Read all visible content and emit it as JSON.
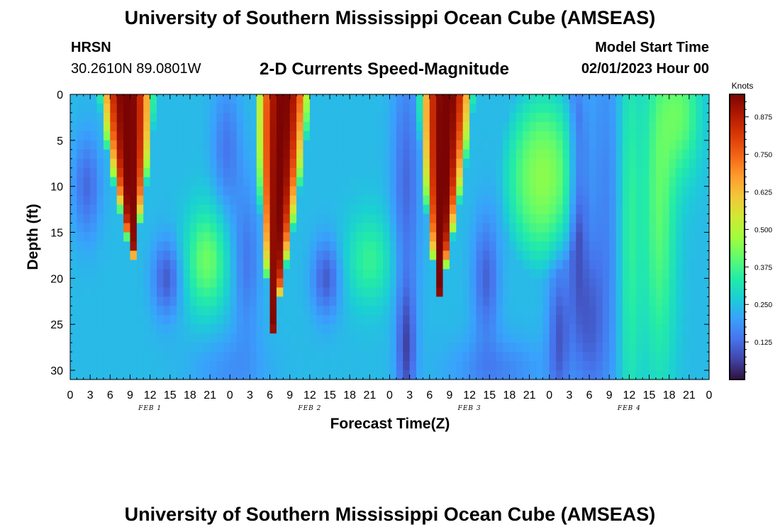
{
  "header": {
    "title": "University of Southern Mississippi Ocean Cube (AMSEAS)",
    "station": "HRSN",
    "coords": "30.2610N  89.0801W",
    "subtitle": "2-D Currents Speed-Magnitude",
    "model_start_label": "Model Start Time",
    "model_start_value": "02/01/2023 Hour 00"
  },
  "footer": {
    "title": "University of Southern Mississippi Ocean Cube (AMSEAS)"
  },
  "chart_data": {
    "type": "heatmap",
    "title": "2-D Currents Speed-Magnitude",
    "xlabel": "Forecast Time(Z)",
    "ylabel": "Depth (ft)",
    "colorbar_label": "Knots",
    "x_range_hours": [
      0,
      96
    ],
    "y_range_ft": [
      0,
      31
    ],
    "y_ticks": [
      "0",
      "5",
      "10",
      "15",
      "20",
      "25",
      "30"
    ],
    "x_ticks": [
      "0",
      "3",
      "6",
      "9",
      "12",
      "15",
      "18",
      "21",
      "0",
      "3",
      "6",
      "9",
      "12",
      "15",
      "18",
      "21",
      "0",
      "3",
      "6",
      "9",
      "12",
      "15",
      "18",
      "21",
      "0",
      "3",
      "6",
      "9",
      "12",
      "15",
      "18",
      "21",
      "0"
    ],
    "date_labels": [
      "FEB 1",
      "FEB 2",
      "FEB 3",
      "FEB 4"
    ],
    "colorbar_range": [
      0.0,
      0.95
    ],
    "colorbar_ticks": [
      "0.125",
      "0.250",
      "0.375",
      "0.500",
      "0.625",
      "0.750",
      "0.875"
    ],
    "colorbar_values": [
      0.125,
      0.25,
      0.375,
      0.5,
      0.625,
      0.75,
      0.875
    ],
    "colormap": [
      "#30123b",
      "#4145ab",
      "#4675ed",
      "#39a2fc",
      "#1bcfd4",
      "#24eca6",
      "#61fc6c",
      "#a4fc3b",
      "#d1e834",
      "#f3c63a",
      "#fe9b2d",
      "#f36315",
      "#d93806",
      "#b11901",
      "#7a0403"
    ],
    "pattern_description_hours_speed": [
      {
        "hour_range": [
          1,
          14
        ],
        "depth_ft": [
          0,
          17
        ],
        "peak_knots": 0.9
      },
      {
        "hour_range": [
          25,
          38
        ],
        "depth_ft": [
          0,
          25
        ],
        "peak_knots": 0.9
      },
      {
        "hour_range": [
          51,
          63
        ],
        "depth_ft": [
          0,
          22
        ],
        "peak_knots": 0.9
      },
      {
        "hour_range": [
          64,
          78
        ],
        "depth_ft": [
          0,
          24
        ],
        "peak_knots": 0.45
      },
      {
        "hour_range": [
          83,
          90
        ],
        "depth_ft": [
          0,
          31
        ],
        "peak_knots": 0.4
      }
    ]
  }
}
